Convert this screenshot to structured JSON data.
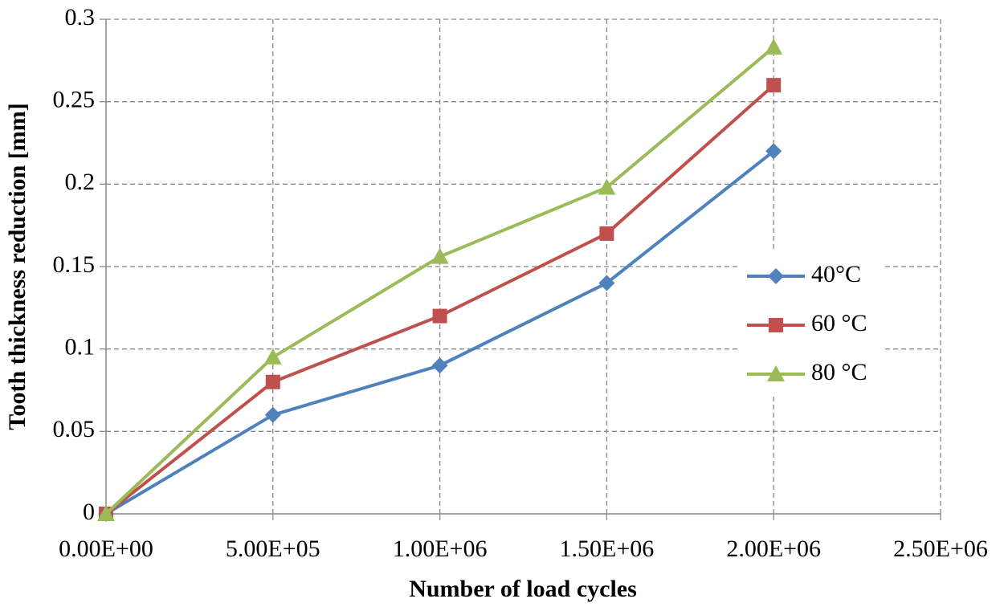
{
  "chart_data": {
    "type": "line",
    "x_label": "Number of load cycles",
    "y_label": "Tooth thickness reduction [mm]",
    "x": [
      0,
      500000,
      1000000,
      1500000,
      2000000
    ],
    "series": [
      {
        "name": "40°C",
        "color": "#4f81bd",
        "marker": "diamond",
        "values": [
          0,
          0.06,
          0.09,
          0.14,
          0.22
        ]
      },
      {
        "name": "60 °C",
        "color": "#c0504d",
        "marker": "square",
        "values": [
          0,
          0.08,
          0.12,
          0.17,
          0.26
        ]
      },
      {
        "name": "80 °C",
        "color": "#9bbb59",
        "marker": "triangle",
        "values": [
          0,
          0.095,
          0.156,
          0.198,
          0.283
        ]
      }
    ],
    "xlim": [
      0,
      2500000
    ],
    "xticks": [
      {
        "value": 0,
        "label": "0.00E+00"
      },
      {
        "value": 500000,
        "label": "5.00E+05"
      },
      {
        "value": 1000000,
        "label": "1.00E+06"
      },
      {
        "value": 1500000,
        "label": "1.50E+06"
      },
      {
        "value": 2000000,
        "label": "2.00E+06"
      },
      {
        "value": 2500000,
        "label": "2.50E+06"
      }
    ],
    "ylim": [
      0,
      0.3
    ],
    "yticks": [
      0,
      0.05,
      0.1,
      0.15,
      0.2,
      0.25,
      0.3
    ],
    "grid": true,
    "legend": "right"
  }
}
